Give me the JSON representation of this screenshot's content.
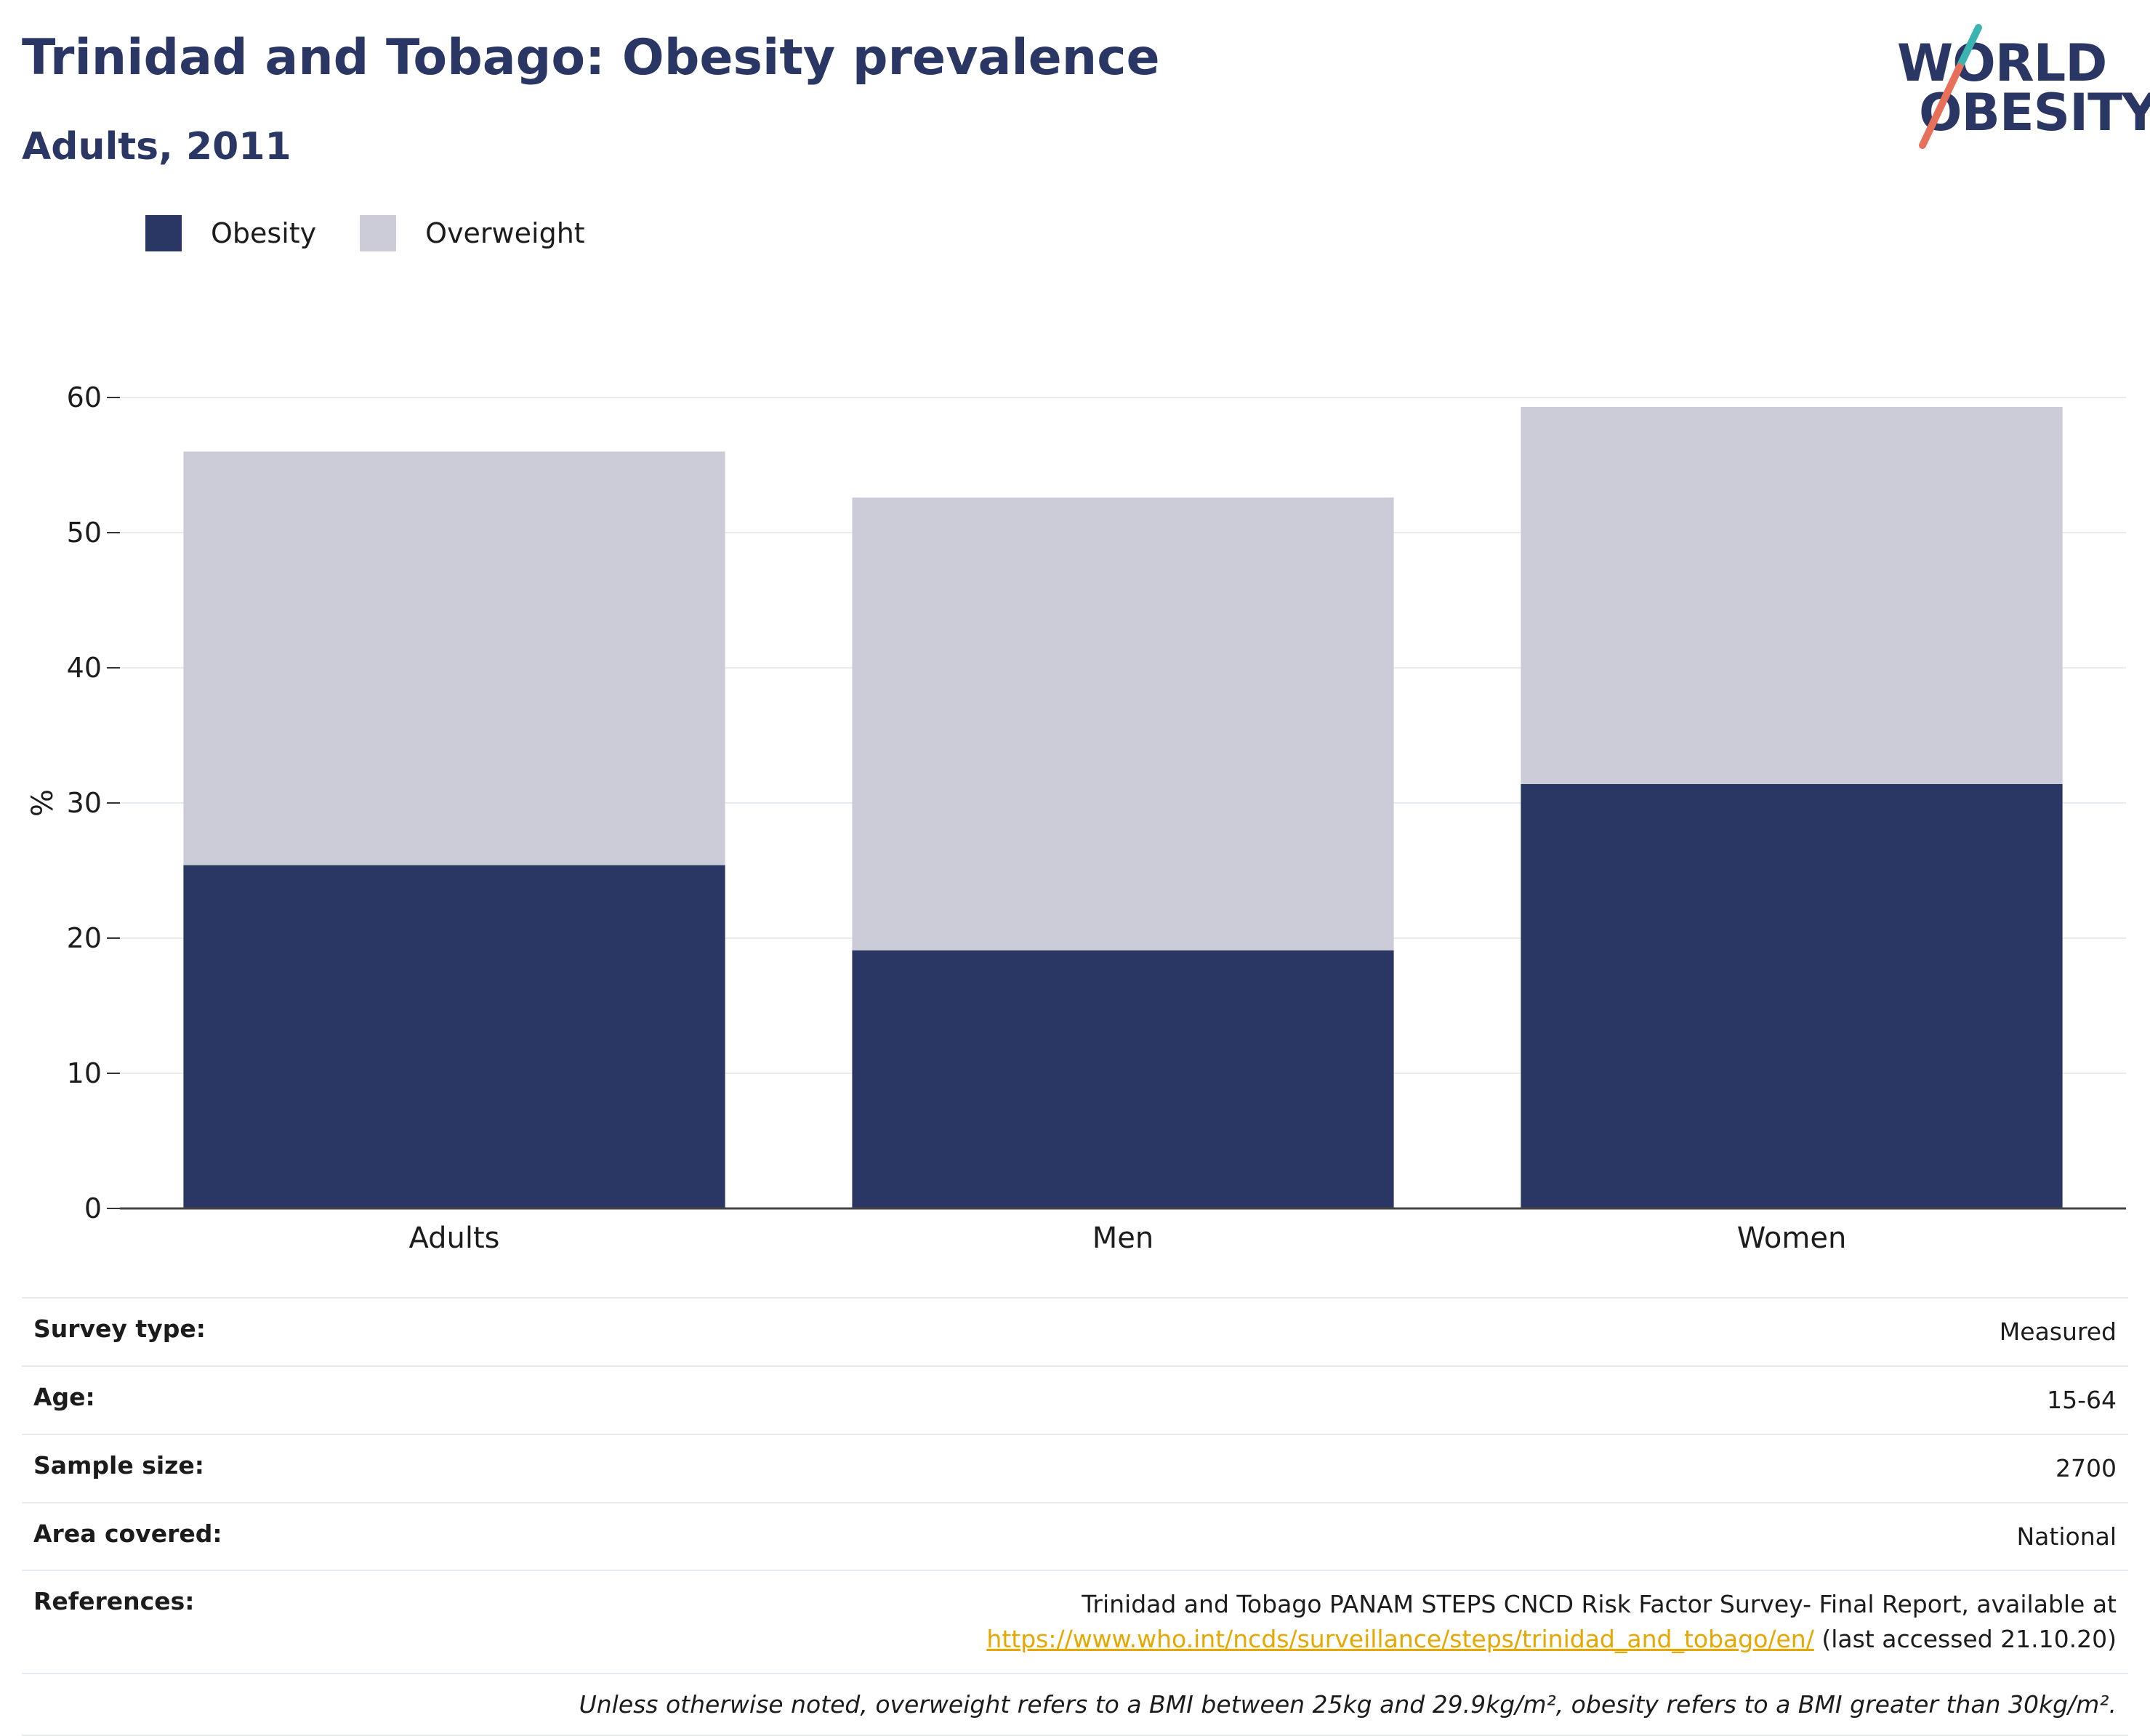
{
  "header": {
    "title": "Trinidad and Tobago: Obesity prevalence",
    "subtitle": "Adults, 2011"
  },
  "logo": {
    "line1": "WORLD",
    "line2": "OBESITY"
  },
  "legend": {
    "items": [
      {
        "label": "Obesity",
        "color": "#2a3663"
      },
      {
        "label": "Overweight",
        "color": "#cbccd8"
      }
    ]
  },
  "chart_data": {
    "type": "bar",
    "stacked": true,
    "categories": [
      "Adults",
      "Men",
      "Women"
    ],
    "series": [
      {
        "name": "Obesity",
        "values": [
          25.4,
          19.1,
          31.4
        ],
        "color": "#2a3663"
      },
      {
        "name": "Overweight",
        "values": [
          30.6,
          33.5,
          27.9
        ],
        "color": "#cbccd8"
      }
    ],
    "ylabel": "%",
    "ylim": [
      0,
      60
    ],
    "yticks": [
      0,
      10,
      20,
      30,
      40,
      50,
      60
    ],
    "grid": true,
    "legend_position": "top-left"
  },
  "info": {
    "rows": [
      {
        "label": "Survey type:",
        "value": "Measured"
      },
      {
        "label": "Age:",
        "value": "15-64"
      },
      {
        "label": "Sample size:",
        "value": "2700"
      },
      {
        "label": "Area covered:",
        "value": "National"
      }
    ],
    "references": {
      "label": "References:",
      "text": "Trinidad and Tobago PANAM STEPS CNCD Risk Factor Survey- Final Report, available at",
      "link": "https://www.who.int/ncds/surveillance/steps/trinidad_and_tobago/en/",
      "suffix": "(last accessed 21.10.20)"
    },
    "note": "Unless otherwise noted, overweight refers to a BMI between 25kg and 29.9kg/m², obesity refers to a BMI greater than 30kg/m²."
  }
}
